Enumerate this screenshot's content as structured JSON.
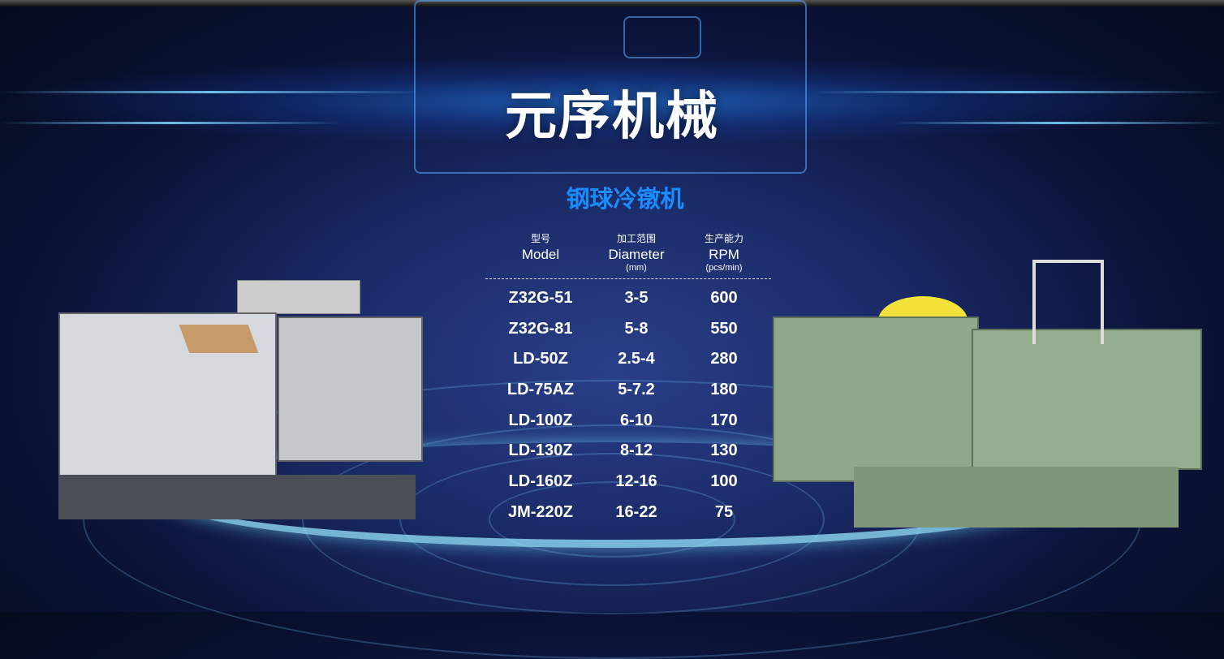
{
  "brand_title": "元序机械",
  "section_title": "钢球冷镦机",
  "table": {
    "headers": [
      {
        "zh": "型号",
        "en": "Model",
        "unit": ""
      },
      {
        "zh": "加工范围",
        "en": "Diameter",
        "unit": "(mm)"
      },
      {
        "zh": "生产能力",
        "en": "RPM",
        "unit": "(pcs/min)"
      }
    ],
    "rows": [
      {
        "model": "Z32G-51",
        "diameter": "3-5",
        "rpm": "600"
      },
      {
        "model": "Z32G-81",
        "diameter": "5-8",
        "rpm": "550"
      },
      {
        "model": "LD-50Z",
        "diameter": "2.5-4",
        "rpm": "280"
      },
      {
        "model": "LD-75AZ",
        "diameter": "5-7.2",
        "rpm": "180"
      },
      {
        "model": "LD-100Z",
        "diameter": "6-10",
        "rpm": "170"
      },
      {
        "model": "LD-130Z",
        "diameter": "8-12",
        "rpm": "130"
      },
      {
        "model": "LD-160Z",
        "diameter": "12-16",
        "rpm": "100"
      },
      {
        "model": "JM-220Z",
        "diameter": "16-22",
        "rpm": "75"
      }
    ]
  },
  "colors": {
    "accent": "#1a8cff",
    "background": "#0b1338",
    "left_machine": "#c9cdd2",
    "right_machine": "#8fa98a"
  }
}
